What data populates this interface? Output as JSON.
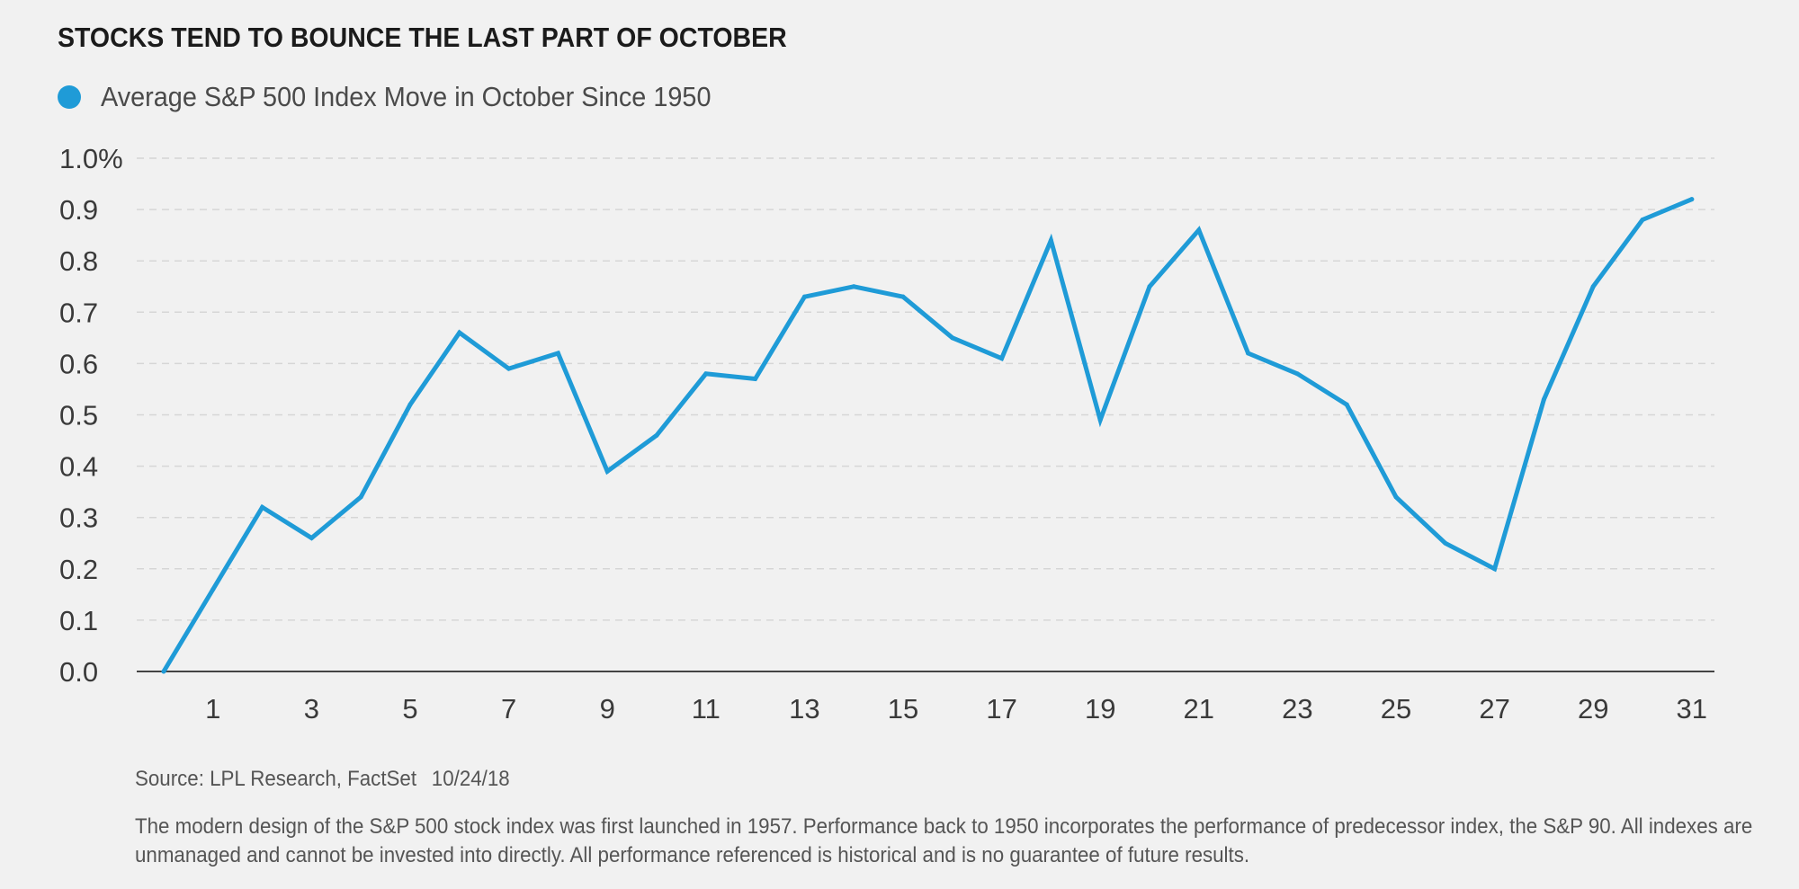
{
  "title": "STOCKS TEND TO BOUNCE THE LAST PART OF OCTOBER",
  "source": {
    "text": "Source: LPL Research, FactSet",
    "date": "10/24/18"
  },
  "note": "The modern design of the S&P 500 stock index was first launched in 1957. Performance back to 1950 incorporates the performance of predecessor index, the S&P 90. All indexes are unmanaged and cannot be invested into directly. All performance referenced is historical and is no guarantee of future results.",
  "chart_data": {
    "type": "line",
    "series": [
      {
        "name": "Average S&P 500 Index Move in October Since 1950",
        "color": "#1f9bd7",
        "x": [
          0,
          1,
          2,
          3,
          4,
          5,
          6,
          7,
          8,
          9,
          10,
          11,
          12,
          13,
          14,
          15,
          16,
          17,
          18,
          19,
          20,
          21,
          22,
          23,
          24,
          25,
          26,
          27,
          28,
          29,
          30,
          31
        ],
        "values": [
          0.0,
          0.16,
          0.32,
          0.26,
          0.34,
          0.52,
          0.66,
          0.59,
          0.62,
          0.39,
          0.46,
          0.58,
          0.57,
          0.73,
          0.75,
          0.73,
          0.65,
          0.61,
          0.84,
          0.49,
          0.75,
          0.86,
          0.62,
          0.58,
          0.52,
          0.34,
          0.25,
          0.2,
          0.53,
          0.75,
          0.88,
          0.92
        ]
      }
    ],
    "x_ticks": [
      1,
      3,
      5,
      7,
      9,
      11,
      13,
      15,
      17,
      19,
      21,
      23,
      25,
      27,
      29,
      31
    ],
    "y_ticks": [
      "0.0",
      "0.1",
      "0.2",
      "0.3",
      "0.4",
      "0.5",
      "0.6",
      "0.7",
      "0.8",
      "0.9",
      "1.0%"
    ],
    "xlim": [
      0,
      31.5
    ],
    "ylim": [
      0,
      1.0
    ],
    "grid": "horizontal-dashed",
    "legend_position": "top-left"
  }
}
